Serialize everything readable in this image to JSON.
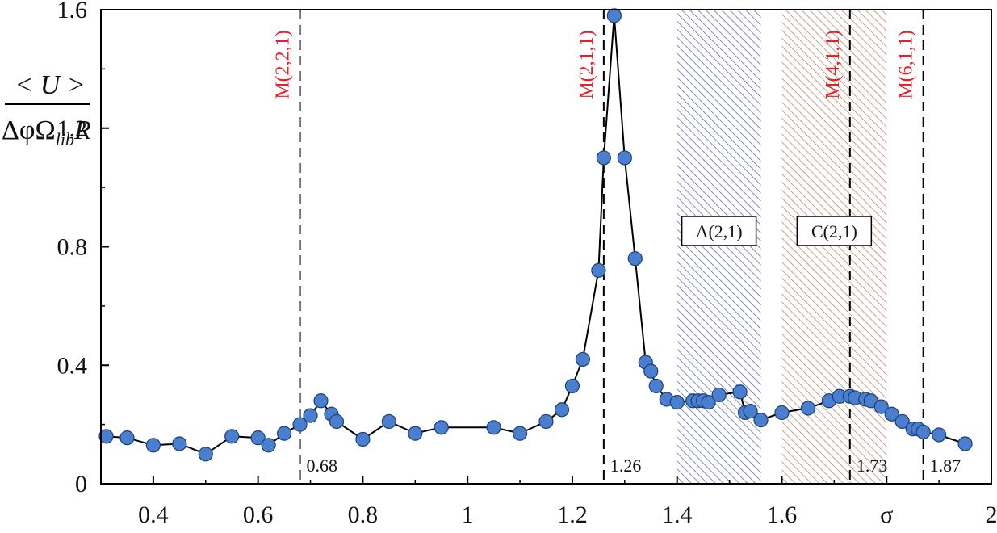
{
  "chart_data": {
    "type": "line",
    "xlabel": "σ",
    "ylabel": {
      "numerator": "< U >",
      "denominator_main": "ΔφΩ",
      "denominator_sub": "lib",
      "denominator_tail": "R"
    },
    "xlim": [
      0.3,
      2.0
    ],
    "ylim": [
      0,
      1.6
    ],
    "x_ticks": [
      "0.4",
      "0.6",
      "0.8",
      "1",
      "1.2",
      "1.4",
      "1.6",
      "σ",
      "2"
    ],
    "x_tick_values": [
      0.4,
      0.6,
      0.8,
      1.0,
      1.2,
      1.4,
      1.6,
      1.8,
      2.0
    ],
    "y_ticks": [
      "0",
      "0.4",
      "0.8",
      "1.2",
      "1.6"
    ],
    "y_tick_values": [
      0,
      0.4,
      0.8,
      1.2,
      1.6
    ],
    "grid": false,
    "series": [
      {
        "x": [
          0.31,
          0.35,
          0.4,
          0.45,
          0.5,
          0.55,
          0.6,
          0.62,
          0.65,
          0.68,
          0.7,
          0.72,
          0.74,
          0.75,
          0.8,
          0.85,
          0.9,
          0.95,
          1.05,
          1.1,
          1.15,
          1.18,
          1.2,
          1.22,
          1.25,
          1.26,
          1.28,
          1.3,
          1.32,
          1.34,
          1.35,
          1.36,
          1.38,
          1.4,
          1.43,
          1.44,
          1.45,
          1.46,
          1.48,
          1.52,
          1.53,
          1.54,
          1.56,
          1.6,
          1.65,
          1.69,
          1.71,
          1.73,
          1.74,
          1.76,
          1.77,
          1.79,
          1.81,
          1.83,
          1.85,
          1.86,
          1.87,
          1.9,
          1.95
        ],
        "y": [
          0.16,
          0.155,
          0.13,
          0.135,
          0.1,
          0.16,
          0.155,
          0.13,
          0.17,
          0.2,
          0.23,
          0.28,
          0.235,
          0.21,
          0.15,
          0.21,
          0.17,
          0.19,
          0.19,
          0.17,
          0.21,
          0.25,
          0.33,
          0.42,
          0.72,
          1.1,
          1.58,
          1.1,
          0.76,
          0.41,
          0.38,
          0.33,
          0.285,
          0.275,
          0.28,
          0.28,
          0.28,
          0.275,
          0.3,
          0.31,
          0.24,
          0.245,
          0.215,
          0.24,
          0.255,
          0.28,
          0.295,
          0.295,
          0.29,
          0.285,
          0.28,
          0.26,
          0.235,
          0.21,
          0.185,
          0.185,
          0.175,
          0.165,
          0.135
        ]
      }
    ],
    "marker_color": "#4a7fcf",
    "line_color": "#000000",
    "vertical_lines": [
      {
        "x": 0.68,
        "value_label": "0.68",
        "mode_label": "M(2,2,1)"
      },
      {
        "x": 1.26,
        "value_label": "1.26",
        "mode_label": "M(2,1,1)"
      },
      {
        "x": 1.73,
        "value_label": "1.73",
        "mode_label": "M(4,1,1)"
      },
      {
        "x": 1.87,
        "value_label": "1.87",
        "mode_label": "M(6,1,1)"
      }
    ],
    "mode_label_color": "#e8202a",
    "bands": [
      {
        "x0": 1.4,
        "x1": 1.56,
        "label": "A(2,1)",
        "color": "#6a6aa8"
      },
      {
        "x0": 1.6,
        "x1": 1.8,
        "label": "C(2,1)",
        "color": "#b88a70"
      }
    ]
  }
}
